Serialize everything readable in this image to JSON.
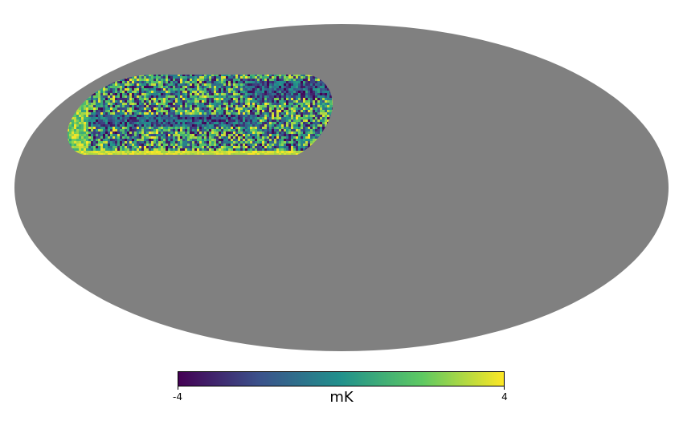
{
  "map": {
    "projection": "mollweide",
    "background_color": "#808080",
    "colormap": "viridis",
    "colormap_stops": [
      "#440154",
      "#3b528b",
      "#21918c",
      "#5ec962",
      "#fde725"
    ]
  },
  "colorbar": {
    "min_label": "-4",
    "max_label": "4",
    "unit": "mK",
    "min": -4,
    "max": 4
  }
}
